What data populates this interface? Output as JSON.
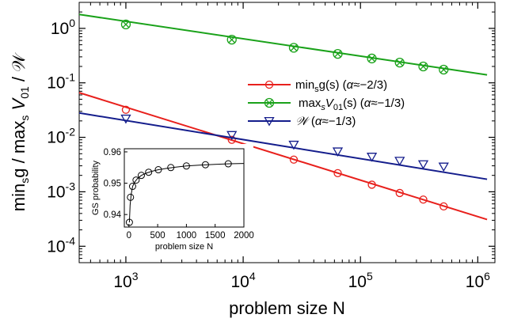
{
  "chart_data": [
    {
      "type": "line",
      "title": "",
      "xlabel": "problem size N",
      "ylabel_parts": [
        "min",
        "s",
        "g / max",
        "s",
        " V",
        "01",
        " / 𝒲"
      ],
      "xscale": "log",
      "yscale": "log",
      "xlim": [
        400,
        1400000
      ],
      "ylim": [
        5e-05,
        3
      ],
      "x_tick_labels": [
        {
          "value": 1000,
          "base": "10",
          "exp": "3"
        },
        {
          "value": 10000,
          "base": "10",
          "exp": "4"
        },
        {
          "value": 100000,
          "base": "10",
          "exp": "5"
        },
        {
          "value": 1000000,
          "base": "10",
          "exp": "6"
        }
      ],
      "y_tick_labels": [
        {
          "value": 1,
          "base": "10",
          "exp": "0"
        },
        {
          "value": 0.1,
          "base": "10",
          "exp": "-1"
        },
        {
          "value": 0.01,
          "base": "10",
          "exp": "-2"
        },
        {
          "value": 0.001,
          "base": "10",
          "exp": "-3"
        },
        {
          "value": 0.0001,
          "base": "10",
          "exp": "-4"
        }
      ],
      "legend_position": "right-center",
      "series": [
        {
          "name": "min_s g(s) (α≈−2/3)",
          "legend_parts": [
            {
              "t": "min",
              "style": "normal"
            },
            {
              "t": "s",
              "style": "sub"
            },
            {
              "t": "g(s) (",
              "style": "normal"
            },
            {
              "t": "α",
              "style": "italic"
            },
            {
              "t": "≈−2/3)",
              "style": "normal"
            }
          ],
          "color": "#e8201c",
          "marker": "circle",
          "points": [
            [
              1000,
              0.032
            ],
            [
              8000,
              0.009
            ],
            [
              27000,
              0.0039
            ],
            [
              64000,
              0.0022
            ],
            [
              125000,
              0.00135
            ],
            [
              216000,
              0.00095
            ],
            [
              343000,
              0.00072
            ],
            [
              512000,
              0.00054
            ]
          ],
          "fit": [
            [
              400,
              0.066
            ],
            [
              1200000,
              0.00031
            ]
          ]
        },
        {
          "name": "max_s V01(s) (α≈−1/3)",
          "legend_parts": [
            {
              "t": "max",
              "style": "normal"
            },
            {
              "t": "s",
              "style": "sub-italic"
            },
            {
              "t": "V",
              "style": "italic"
            },
            {
              "t": "01",
              "style": "sub"
            },
            {
              "t": "(s) (",
              "style": "normal"
            },
            {
              "t": "α",
              "style": "italic"
            },
            {
              "t": "≈−1/3)",
              "style": "normal"
            }
          ],
          "color": "#1aa21a",
          "marker": "circle-x",
          "points": [
            [
              1000,
              1.18
            ],
            [
              8000,
              0.62
            ],
            [
              27000,
              0.44
            ],
            [
              64000,
              0.34
            ],
            [
              125000,
              0.28
            ],
            [
              216000,
              0.235
            ],
            [
              343000,
              0.2
            ],
            [
              512000,
              0.175
            ]
          ],
          "fit": [
            [
              400,
              1.8
            ],
            [
              1200000,
              0.14
            ]
          ]
        },
        {
          "name": "𝒲 (α≈−1/3)",
          "legend_parts": [
            {
              "t": "𝒲",
              "style": "italic"
            },
            {
              "t": " (",
              "style": "normal"
            },
            {
              "t": "α",
              "style": "italic"
            },
            {
              "t": "≈−1/3)",
              "style": "normal"
            }
          ],
          "color": "#141d8c",
          "marker": "triangle-down",
          "points": [
            [
              1000,
              0.022
            ],
            [
              8000,
              0.011
            ],
            [
              27000,
              0.0073
            ],
            [
              64000,
              0.0055
            ],
            [
              125000,
              0.0044
            ],
            [
              216000,
              0.0037
            ],
            [
              343000,
              0.0032
            ],
            [
              512000,
              0.0029
            ]
          ],
          "fit": [
            [
              400,
              0.028
            ],
            [
              1200000,
              0.0017
            ]
          ]
        }
      ]
    },
    {
      "type": "line",
      "title": "",
      "xlabel": "problem size N",
      "ylabel": "GS probability",
      "xlim": [
        -80,
        2000
      ],
      "ylim": [
        0.936,
        0.961
      ],
      "x_ticks": [
        0,
        500,
        1000,
        1500,
        2000
      ],
      "y_ticks": [
        0.94,
        0.95,
        0.96
      ],
      "x_tick_labels": [
        "0",
        "500",
        "1000",
        "1500",
        "2000"
      ],
      "y_tick_labels": [
        "0.94",
        "0.95",
        "0.96"
      ],
      "series": [
        {
          "color": "#000000",
          "marker": "circle-open",
          "points": [
            [
              8,
              0.9375
            ],
            [
              27,
              0.9455
            ],
            [
              64,
              0.949
            ],
            [
              125,
              0.951
            ],
            [
              216,
              0.9525
            ],
            [
              343,
              0.9535
            ],
            [
              512,
              0.9543
            ],
            [
              729,
              0.955
            ],
            [
              1000,
              0.9555
            ],
            [
              1331,
              0.9559
            ],
            [
              1728,
              0.9562
            ]
          ],
          "curve": [
            [
              8,
              0.9375
            ],
            [
              20,
              0.943
            ],
            [
              40,
              0.9465
            ],
            [
              64,
              0.949
            ],
            [
              100,
              0.9504
            ],
            [
              150,
              0.9515
            ],
            [
              216,
              0.9525
            ],
            [
              300,
              0.9532
            ],
            [
              400,
              0.9538
            ],
            [
              512,
              0.9543
            ],
            [
              650,
              0.9547
            ],
            [
              800,
              0.9551
            ],
            [
              1000,
              0.9555
            ],
            [
              1250,
              0.9558
            ],
            [
              1500,
              0.956
            ],
            [
              1750,
              0.9562
            ],
            [
              2000,
              0.9563
            ]
          ]
        }
      ]
    }
  ]
}
